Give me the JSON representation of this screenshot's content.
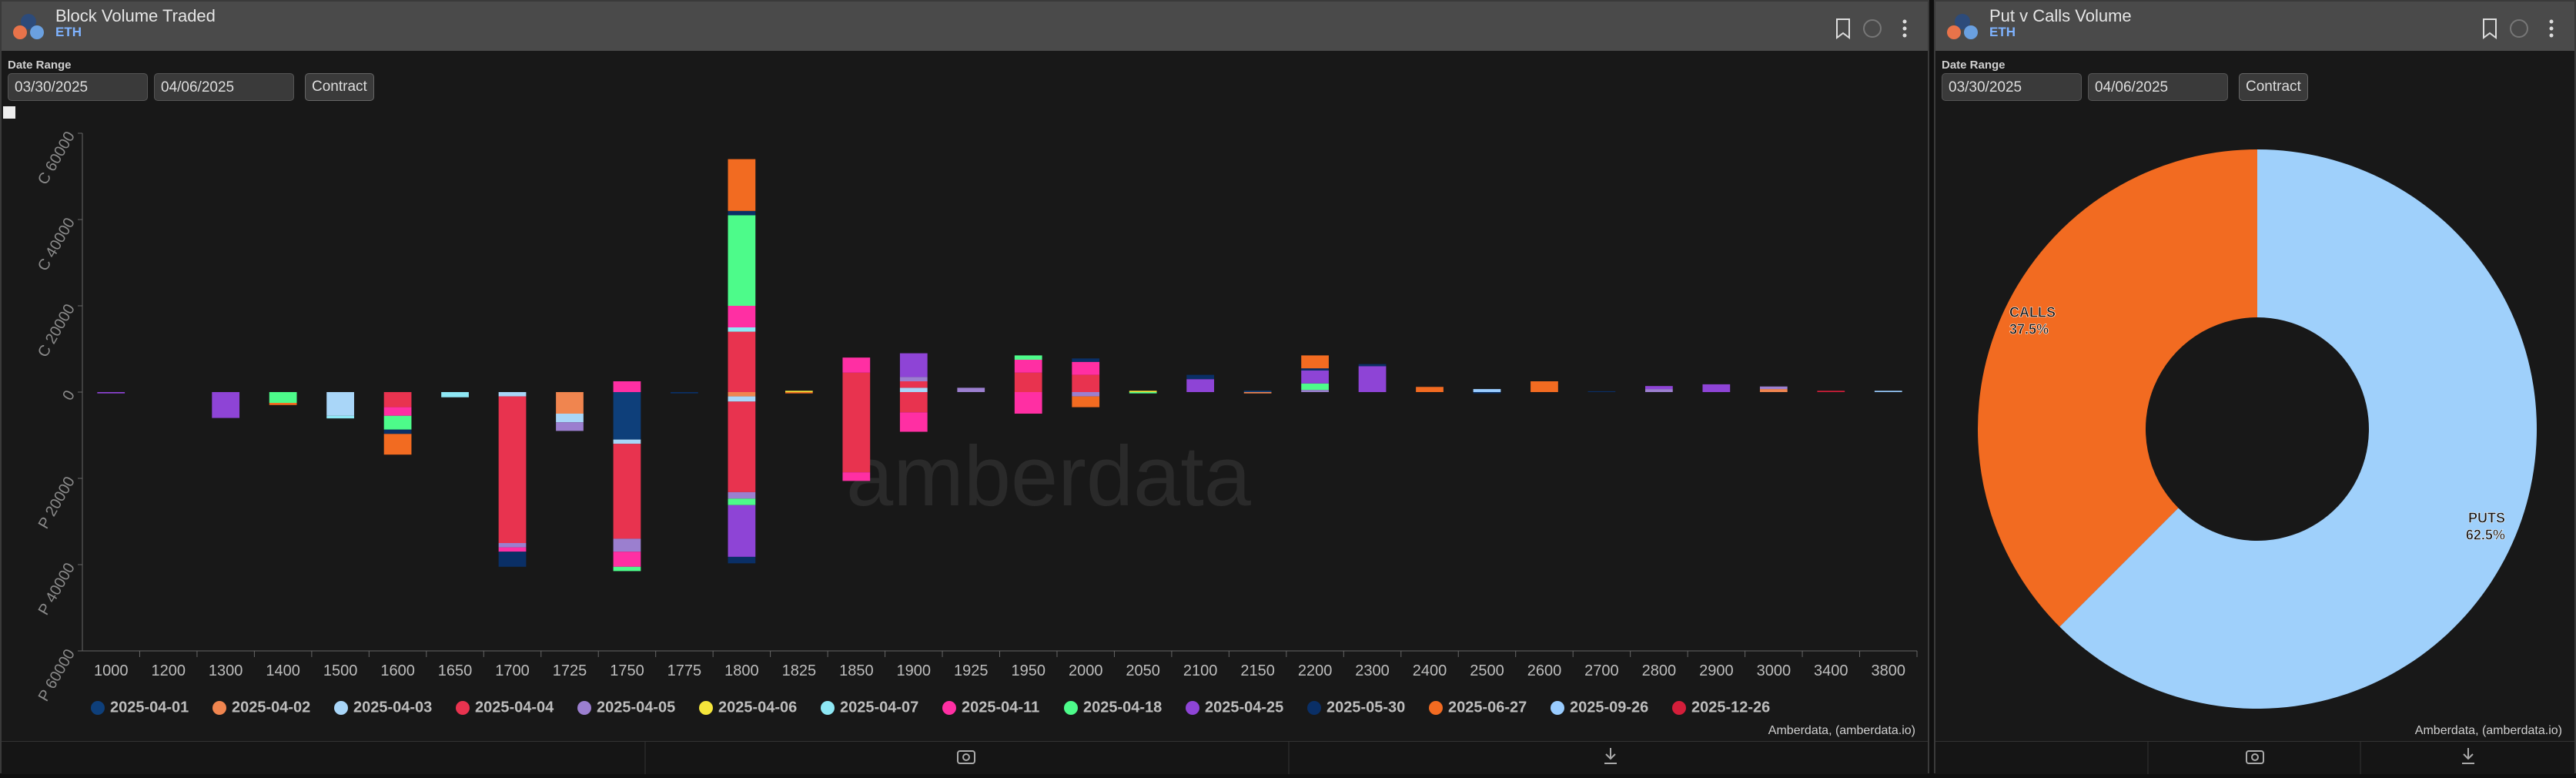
{
  "panels": [
    {
      "title": "Block Volume Traded",
      "subtitle": "ETH",
      "date_label": "Date Range",
      "start_date": "03/30/2025",
      "end_date": "04/06/2025",
      "button": "Contract",
      "credit": "Amberdata, (amberdata.io)",
      "watermark": "amberdata"
    },
    {
      "title": "Put v Calls Volume",
      "subtitle": "ETH",
      "date_label": "Date Range",
      "start_date": "03/30/2025",
      "end_date": "04/06/2025",
      "button": "Contract",
      "credit": "Amberdata, (amberdata.io)"
    }
  ],
  "chart_data": [
    {
      "type": "stacked-bar",
      "categories": [
        "1000",
        "1200",
        "1300",
        "1400",
        "1500",
        "1600",
        "1650",
        "1700",
        "1725",
        "1750",
        "1775",
        "1800",
        "1825",
        "1850",
        "1900",
        "1925",
        "1950",
        "2000",
        "2050",
        "2100",
        "2150",
        "2200",
        "2300",
        "2400",
        "2500",
        "2600",
        "2700",
        "2800",
        "2900",
        "3000",
        "3400",
        "3800"
      ],
      "ylim": [
        -60000,
        60000
      ],
      "yticks": [
        {
          "value": 60000,
          "label": "C 60000"
        },
        {
          "value": 40000,
          "label": "C 40000"
        },
        {
          "value": 20000,
          "label": "C 20000"
        },
        0,
        {
          "value": -20000,
          "label": "P 20000"
        },
        {
          "value": -40000,
          "label": "P 40000"
        },
        {
          "value": -60000,
          "label": "P 60000"
        }
      ],
      "series": [
        {
          "name": "2025-04-01",
          "color": "#0e3f7a",
          "calls": [
            0,
            0,
            0,
            0,
            0,
            0,
            0,
            0,
            0,
            0,
            0,
            0,
            0,
            0,
            0,
            0,
            0,
            0,
            0,
            0,
            300,
            0,
            0,
            0,
            0,
            0,
            0,
            0,
            0,
            0,
            0,
            0
          ],
          "puts": [
            0,
            0,
            0,
            0,
            0,
            0,
            0,
            0,
            0,
            -11000,
            0,
            0,
            0,
            0,
            0,
            0,
            0,
            0,
            0,
            0,
            0,
            0,
            0,
            0,
            0,
            0,
            0,
            0,
            0,
            0,
            0,
            0
          ]
        },
        {
          "name": "2025-04-02",
          "color": "#f0854f",
          "calls": [
            0,
            0,
            0,
            0,
            0,
            0,
            0,
            0,
            0,
            0,
            0,
            0,
            0,
            0,
            0,
            0,
            0,
            0,
            0,
            0,
            0,
            0,
            0,
            0,
            0,
            0,
            0,
            0,
            0,
            700,
            0,
            0
          ],
          "puts": [
            0,
            0,
            0,
            0,
            0,
            0,
            0,
            0,
            -5000,
            0,
            0,
            -1000,
            0,
            0,
            0,
            0,
            0,
            0,
            0,
            0,
            -300,
            0,
            0,
            0,
            0,
            0,
            0,
            0,
            0,
            0,
            0,
            0
          ]
        },
        {
          "name": "2025-04-03",
          "color": "#a9d6f8",
          "calls": [
            0,
            0,
            0,
            0,
            0,
            0,
            0,
            0,
            0,
            0,
            0,
            0,
            0,
            0,
            1000,
            0,
            0,
            0,
            0,
            0,
            0,
            0,
            0,
            0,
            0,
            0,
            0,
            0,
            0,
            0,
            0,
            0
          ],
          "puts": [
            0,
            0,
            0,
            0,
            -5500,
            0,
            0,
            -1000,
            -2000,
            -1000,
            0,
            -1200,
            0,
            0,
            0,
            0,
            0,
            0,
            0,
            0,
            0,
            0,
            0,
            0,
            0,
            0,
            0,
            0,
            0,
            0,
            0,
            0
          ]
        },
        {
          "name": "2025-04-04",
          "color": "#e8334f",
          "calls": [
            0,
            0,
            0,
            0,
            0,
            0,
            0,
            0,
            0,
            0,
            0,
            14000,
            0,
            4500,
            1500,
            0,
            4500,
            4000,
            0,
            0,
            0,
            0,
            0,
            0,
            0,
            0,
            0,
            0,
            0,
            0,
            0,
            0
          ],
          "puts": [
            0,
            0,
            0,
            0,
            0,
            -3500,
            0,
            -34000,
            0,
            -22000,
            0,
            -21000,
            0,
            -18600,
            -4700,
            0,
            0,
            0,
            0,
            0,
            0,
            0,
            0,
            0,
            0,
            0,
            0,
            0,
            0,
            0,
            0,
            0
          ]
        },
        {
          "name": "2025-04-05",
          "color": "#9b7fcf",
          "calls": [
            0,
            0,
            0,
            0,
            0,
            0,
            0,
            0,
            0,
            0,
            0,
            0,
            0,
            0,
            1000,
            1000,
            0,
            0,
            0,
            0,
            0,
            500,
            0,
            0,
            0,
            0,
            0,
            700,
            0,
            600,
            0,
            0
          ],
          "puts": [
            0,
            0,
            0,
            0,
            0,
            0,
            0,
            -1000,
            -2000,
            -3000,
            0,
            -1500,
            0,
            0,
            0,
            0,
            0,
            -1000,
            0,
            0,
            0,
            0,
            0,
            0,
            0,
            0,
            0,
            0,
            0,
            0,
            0,
            0
          ]
        },
        {
          "name": "2025-04-06",
          "color": "#f5e63b",
          "calls": [
            0,
            0,
            0,
            0,
            0,
            0,
            0,
            0,
            0,
            0,
            0,
            0,
            300,
            0,
            0,
            0,
            0,
            0,
            300,
            0,
            0,
            0,
            0,
            0,
            0,
            0,
            0,
            0,
            0,
            0,
            0,
            0
          ],
          "puts": [
            0,
            0,
            0,
            0,
            0,
            0,
            0,
            0,
            0,
            0,
            0,
            0,
            0,
            0,
            0,
            0,
            0,
            0,
            0,
            0,
            0,
            0,
            0,
            0,
            0,
            0,
            0,
            0,
            0,
            0,
            0,
            0
          ]
        },
        {
          "name": "2025-04-07",
          "color": "#8ee8f5",
          "calls": [
            0,
            0,
            0,
            0,
            0,
            0,
            0,
            0,
            0,
            0,
            0,
            1000,
            0,
            0,
            0,
            0,
            0,
            0,
            0,
            0,
            0,
            0,
            0,
            0,
            0,
            0,
            0,
            0,
            0,
            0,
            0,
            0
          ],
          "puts": [
            0,
            0,
            0,
            0,
            -600,
            0,
            -1200,
            0,
            0,
            0,
            0,
            0,
            0,
            0,
            0,
            0,
            0,
            0,
            0,
            0,
            0,
            0,
            0,
            0,
            0,
            0,
            0,
            0,
            0,
            0,
            0,
            0
          ]
        },
        {
          "name": "2025-04-11",
          "color": "#ff2fa3",
          "calls": [
            0,
            0,
            0,
            0,
            0,
            0,
            0,
            0,
            0,
            2500,
            0,
            5000,
            0,
            3500,
            0,
            0,
            3000,
            3000,
            0,
            0,
            0,
            0,
            0,
            0,
            0,
            0,
            0,
            0,
            0,
            0,
            0,
            0
          ],
          "puts": [
            0,
            0,
            0,
            0,
            0,
            -2000,
            0,
            -1000,
            0,
            -3500,
            0,
            0,
            0,
            -2000,
            -4500,
            0,
            -5000,
            0,
            0,
            0,
            0,
            0,
            0,
            0,
            0,
            0,
            0,
            0,
            0,
            0,
            0,
            0
          ]
        },
        {
          "name": "2025-04-18",
          "color": "#4dfb8a",
          "calls": [
            0,
            0,
            0,
            0,
            0,
            0,
            0,
            0,
            0,
            0,
            0,
            21000,
            0,
            0,
            0,
            0,
            1000,
            0,
            0,
            0,
            0,
            1500,
            0,
            0,
            0,
            0,
            0,
            0,
            0,
            0,
            0,
            0
          ],
          "puts": [
            0,
            0,
            0,
            -2500,
            0,
            -3200,
            0,
            0,
            0,
            -1000,
            0,
            -1500,
            0,
            0,
            0,
            0,
            0,
            0,
            -300,
            0,
            0,
            0,
            0,
            0,
            0,
            0,
            0,
            0,
            0,
            0,
            0,
            0
          ]
        },
        {
          "name": "2025-04-25",
          "color": "#8e44d6",
          "calls": [
            0,
            0,
            0,
            0,
            0,
            0,
            0,
            0,
            0,
            0,
            0,
            0,
            0,
            0,
            5500,
            0,
            0,
            0,
            0,
            3000,
            0,
            3000,
            6000,
            0,
            0,
            0,
            0,
            700,
            1800,
            0,
            0,
            0
          ],
          "puts": [
            -300,
            0,
            -6000,
            0,
            0,
            0,
            0,
            0,
            0,
            0,
            0,
            -12000,
            0,
            0,
            0,
            0,
            0,
            0,
            0,
            0,
            0,
            0,
            0,
            0,
            0,
            0,
            0,
            0,
            0,
            0,
            0,
            0
          ]
        },
        {
          "name": "2025-05-30",
          "color": "#0a2f66",
          "calls": [
            0,
            0,
            0,
            0,
            0,
            0,
            0,
            0,
            0,
            0,
            0,
            1000,
            0,
            0,
            0,
            0,
            0,
            800,
            0,
            1000,
            0,
            500,
            500,
            0,
            0,
            0,
            200,
            0,
            0,
            0,
            0,
            0
          ],
          "puts": [
            0,
            0,
            0,
            0,
            0,
            -1000,
            0,
            -3500,
            0,
            0,
            -300,
            -1500,
            0,
            0,
            0,
            0,
            0,
            0,
            0,
            0,
            0,
            0,
            0,
            0,
            -300,
            0,
            0,
            0,
            0,
            0,
            0,
            0
          ]
        },
        {
          "name": "2025-06-27",
          "color": "#f26b21",
          "calls": [
            0,
            0,
            0,
            0,
            0,
            0,
            0,
            0,
            0,
            0,
            0,
            12000,
            0,
            0,
            0,
            0,
            0,
            0,
            0,
            0,
            0,
            3000,
            0,
            1200,
            0,
            2500,
            0,
            0,
            0,
            0,
            0,
            0
          ],
          "puts": [
            0,
            0,
            0,
            -500,
            0,
            -4800,
            0,
            0,
            0,
            0,
            0,
            0,
            -300,
            0,
            0,
            0,
            0,
            -2500,
            0,
            0,
            0,
            0,
            0,
            0,
            0,
            0,
            0,
            0,
            0,
            0,
            0,
            0
          ]
        },
        {
          "name": "2025-09-26",
          "color": "#99ccff",
          "calls": [
            0,
            0,
            0,
            0,
            0,
            0,
            0,
            0,
            0,
            0,
            0,
            0,
            0,
            0,
            0,
            0,
            0,
            0,
            0,
            0,
            0,
            0,
            0,
            0,
            700,
            0,
            0,
            0,
            0,
            0,
            0,
            300
          ],
          "puts": [
            0,
            0,
            0,
            0,
            0,
            0,
            0,
            0,
            0,
            0,
            0,
            0,
            0,
            0,
            0,
            0,
            0,
            0,
            0,
            0,
            0,
            0,
            0,
            0,
            0,
            0,
            0,
            0,
            0,
            0,
            0,
            0
          ]
        },
        {
          "name": "2025-12-26",
          "color": "#d41e3a",
          "calls": [
            0,
            0,
            0,
            0,
            0,
            0,
            0,
            0,
            0,
            0,
            0,
            0,
            0,
            0,
            0,
            0,
            0,
            0,
            0,
            0,
            0,
            0,
            0,
            0,
            0,
            0,
            0,
            0,
            0,
            0,
            300,
            0
          ],
          "puts": [
            0,
            0,
            0,
            0,
            0,
            0,
            0,
            0,
            0,
            0,
            0,
            0,
            0,
            0,
            0,
            0,
            0,
            0,
            0,
            0,
            0,
            0,
            0,
            0,
            0,
            0,
            0,
            0,
            0,
            0,
            0,
            0
          ]
        }
      ]
    },
    {
      "type": "donut",
      "categories": [
        "CALLS",
        "PUTS"
      ],
      "values": [
        37.5,
        62.5
      ],
      "value_labels": [
        "37.5%",
        "62.5%"
      ],
      "colors": [
        "#f26b21",
        "#9fd0fb"
      ]
    }
  ]
}
